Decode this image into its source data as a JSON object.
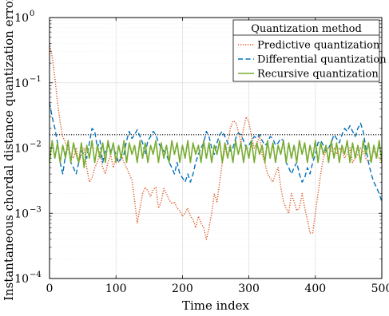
{
  "chart_data": {
    "type": "line",
    "xlabel": "Time index",
    "ylabel": "Instantaneous chordal distance quantization error",
    "xlim": [
      0,
      500
    ],
    "ylim": [
      0.0001,
      1
    ],
    "yscale": "log",
    "grid": true,
    "x_ticks": [
      0,
      100,
      200,
      300,
      400,
      500
    ],
    "x_tick_labels": [
      "0",
      "100",
      "200",
      "300",
      "400",
      "500"
    ],
    "y_ticks": [
      0.0001,
      0.001,
      0.01,
      0.1,
      1
    ],
    "y_tick_labels": [
      {
        "base": "10",
        "exp": "−4"
      },
      {
        "base": "10",
        "exp": "−3"
      },
      {
        "base": "10",
        "exp": "−2"
      },
      {
        "base": "10",
        "exp": "−1"
      },
      {
        "base": "10",
        "exp": "0"
      }
    ],
    "reference_line": {
      "y": 0.016,
      "style": "dotted",
      "color": "#000000"
    },
    "legend": {
      "title": "Quantization method",
      "placement": "top-right"
    },
    "series": [
      {
        "name": "Predictive quantization",
        "color": "#d95319",
        "style": "dotted",
        "x": [
          0,
          4,
          8,
          12,
          16,
          20,
          24,
          28,
          32,
          36,
          40,
          44,
          48,
          52,
          56,
          60,
          64,
          68,
          72,
          76,
          80,
          84,
          88,
          92,
          96,
          100,
          104,
          108,
          112,
          116,
          120,
          124,
          128,
          132,
          136,
          140,
          144,
          148,
          152,
          156,
          160,
          164,
          168,
          172,
          176,
          180,
          184,
          188,
          192,
          196,
          200,
          204,
          208,
          212,
          216,
          220,
          224,
          228,
          232,
          236,
          240,
          244,
          248,
          252,
          256,
          260,
          264,
          268,
          272,
          276,
          280,
          284,
          288,
          292,
          296,
          300,
          304,
          308,
          312,
          316,
          320,
          324,
          328,
          332,
          336,
          340,
          344,
          348,
          352,
          356,
          360,
          364,
          368,
          372,
          376,
          380,
          384,
          388,
          392,
          396,
          400,
          404,
          408,
          412,
          416,
          420,
          424,
          428,
          432,
          436,
          440,
          444,
          448,
          452,
          456,
          460,
          464,
          468,
          472,
          476,
          480,
          484,
          488,
          492,
          496,
          500
        ],
        "values": [
          0.4,
          0.25,
          0.12,
          0.05,
          0.025,
          0.015,
          0.012,
          0.009,
          0.008,
          0.007,
          0.01,
          0.006,
          0.008,
          0.01,
          0.005,
          0.003,
          0.0035,
          0.005,
          0.006,
          0.009,
          0.005,
          0.004,
          0.006,
          0.008,
          0.005,
          0.007,
          0.006,
          0.008,
          0.006,
          0.005,
          0.004,
          0.0032,
          0.0016,
          0.0007,
          0.0012,
          0.002,
          0.0025,
          0.0022,
          0.0018,
          0.0023,
          0.0025,
          0.0012,
          0.0015,
          0.0024,
          0.002,
          0.0016,
          0.0014,
          0.0015,
          0.0012,
          0.0011,
          0.0009,
          0.001,
          0.0012,
          0.0009,
          0.0008,
          0.0006,
          0.0009,
          0.0007,
          0.0006,
          0.0004,
          0.0006,
          0.001,
          0.002,
          0.0015,
          0.003,
          0.006,
          0.009,
          0.012,
          0.02,
          0.026,
          0.025,
          0.018,
          0.012,
          0.02,
          0.03,
          0.025,
          0.015,
          0.01,
          0.012,
          0.015,
          0.008,
          0.006,
          0.004,
          0.0035,
          0.003,
          0.004,
          0.005,
          0.0025,
          0.0015,
          0.0012,
          0.001,
          0.002,
          0.0015,
          0.0011,
          0.0012,
          0.002,
          0.0012,
          0.0008,
          0.0005,
          0.0005,
          0.001,
          0.002,
          0.004,
          0.007,
          0.009,
          0.01,
          0.009,
          0.01,
          0.008,
          0.01,
          0.009,
          0.007,
          0.008,
          0.01,
          0.006,
          0.007,
          0.008,
          0.01,
          0.009,
          0.007,
          0.006,
          0.007,
          0.009,
          0.008,
          0.007,
          0.006
        ]
      },
      {
        "name": "Differential quantization",
        "color": "#0072bd",
        "style": "dashed",
        "x": [
          0,
          4,
          8,
          12,
          16,
          20,
          24,
          28,
          32,
          36,
          40,
          44,
          48,
          52,
          56,
          60,
          64,
          68,
          72,
          76,
          80,
          84,
          88,
          92,
          96,
          100,
          104,
          108,
          112,
          116,
          120,
          124,
          128,
          132,
          136,
          140,
          144,
          148,
          152,
          156,
          160,
          164,
          168,
          172,
          176,
          180,
          184,
          188,
          192,
          196,
          200,
          204,
          208,
          212,
          216,
          220,
          224,
          228,
          232,
          236,
          240,
          244,
          248,
          252,
          256,
          260,
          264,
          268,
          272,
          276,
          280,
          284,
          288,
          292,
          296,
          300,
          304,
          308,
          312,
          316,
          320,
          324,
          328,
          332,
          336,
          340,
          344,
          348,
          352,
          356,
          360,
          364,
          368,
          372,
          376,
          380,
          384,
          388,
          392,
          396,
          400,
          404,
          408,
          412,
          416,
          420,
          424,
          428,
          432,
          436,
          440,
          444,
          448,
          452,
          456,
          460,
          464,
          468,
          472,
          476,
          480,
          484,
          488,
          492,
          496,
          500
        ],
        "values": [
          0.05,
          0.03,
          0.02,
          0.012,
          0.006,
          0.004,
          0.008,
          0.012,
          0.006,
          0.005,
          0.004,
          0.006,
          0.009,
          0.008,
          0.007,
          0.012,
          0.02,
          0.018,
          0.01,
          0.013,
          0.006,
          0.009,
          0.011,
          0.009,
          0.01,
          0.008,
          0.006,
          0.007,
          0.008,
          0.013,
          0.018,
          0.014,
          0.016,
          0.019,
          0.015,
          0.012,
          0.008,
          0.013,
          0.015,
          0.018,
          0.016,
          0.012,
          0.01,
          0.009,
          0.008,
          0.006,
          0.005,
          0.004,
          0.006,
          0.004,
          0.0035,
          0.003,
          0.004,
          0.003,
          0.004,
          0.006,
          0.008,
          0.01,
          0.012,
          0.018,
          0.015,
          0.01,
          0.008,
          0.012,
          0.016,
          0.018,
          0.015,
          0.012,
          0.009,
          0.01,
          0.014,
          0.017,
          0.016,
          0.013,
          0.01,
          0.011,
          0.013,
          0.015,
          0.014,
          0.016,
          0.013,
          0.011,
          0.012,
          0.015,
          0.014,
          0.011,
          0.012,
          0.014,
          0.013,
          0.006,
          0.005,
          0.004,
          0.005,
          0.006,
          0.004,
          0.003,
          0.0035,
          0.005,
          0.004,
          0.006,
          0.008,
          0.012,
          0.013,
          0.011,
          0.009,
          0.01,
          0.012,
          0.016,
          0.014,
          0.012,
          0.016,
          0.02,
          0.018,
          0.022,
          0.018,
          0.015,
          0.02,
          0.024,
          0.018,
          0.01,
          0.006,
          0.004,
          0.003,
          0.0025,
          0.002,
          0.0015
        ]
      },
      {
        "name": "Recursive quantization",
        "color": "#77ac30",
        "style": "solid",
        "x": [
          0,
          4,
          8,
          12,
          16,
          20,
          24,
          28,
          32,
          36,
          40,
          44,
          48,
          52,
          56,
          60,
          64,
          68,
          72,
          76,
          80,
          84,
          88,
          92,
          96,
          100,
          104,
          108,
          112,
          116,
          120,
          124,
          128,
          132,
          136,
          140,
          144,
          148,
          152,
          156,
          160,
          164,
          168,
          172,
          176,
          180,
          184,
          188,
          192,
          196,
          200,
          204,
          208,
          212,
          216,
          220,
          224,
          228,
          232,
          236,
          240,
          244,
          248,
          252,
          256,
          260,
          264,
          268,
          272,
          276,
          280,
          284,
          288,
          292,
          296,
          300,
          304,
          308,
          312,
          316,
          320,
          324,
          328,
          332,
          336,
          340,
          344,
          348,
          352,
          356,
          360,
          364,
          368,
          372,
          376,
          380,
          384,
          388,
          392,
          396,
          400,
          404,
          408,
          412,
          416,
          420,
          424,
          428,
          432,
          436,
          440,
          444,
          448,
          452,
          456,
          460,
          464,
          468,
          472,
          476,
          480,
          484,
          488,
          492,
          496,
          500
        ],
        "values": [
          0.006,
          0.013,
          0.007,
          0.012,
          0.006,
          0.011,
          0.007,
          0.013,
          0.006,
          0.012,
          0.008,
          0.006,
          0.012,
          0.005,
          0.011,
          0.007,
          0.013,
          0.006,
          0.011,
          0.007,
          0.012,
          0.006,
          0.013,
          0.008,
          0.012,
          0.006,
          0.011,
          0.007,
          0.013,
          0.006,
          0.012,
          0.008,
          0.011,
          0.006,
          0.013,
          0.007,
          0.012,
          0.006,
          0.011,
          0.008,
          0.013,
          0.006,
          0.012,
          0.007,
          0.011,
          0.006,
          0.013,
          0.008,
          0.012,
          0.006,
          0.011,
          0.007,
          0.013,
          0.006,
          0.012,
          0.008,
          0.011,
          0.006,
          0.013,
          0.007,
          0.012,
          0.006,
          0.011,
          0.008,
          0.013,
          0.006,
          0.012,
          0.007,
          0.011,
          0.006,
          0.013,
          0.008,
          0.012,
          0.006,
          0.011,
          0.007,
          0.013,
          0.006,
          0.012,
          0.008,
          0.011,
          0.006,
          0.013,
          0.007,
          0.012,
          0.006,
          0.011,
          0.008,
          0.013,
          0.006,
          0.012,
          0.007,
          0.011,
          0.006,
          0.013,
          0.008,
          0.012,
          0.006,
          0.011,
          0.007,
          0.013,
          0.006,
          0.012,
          0.008,
          0.011,
          0.006,
          0.013,
          0.007,
          0.012,
          0.006,
          0.011,
          0.008,
          0.013,
          0.006,
          0.012,
          0.007,
          0.011,
          0.006,
          0.013,
          0.008,
          0.012,
          0.006,
          0.011,
          0.007,
          0.013,
          0.006
        ]
      }
    ]
  }
}
